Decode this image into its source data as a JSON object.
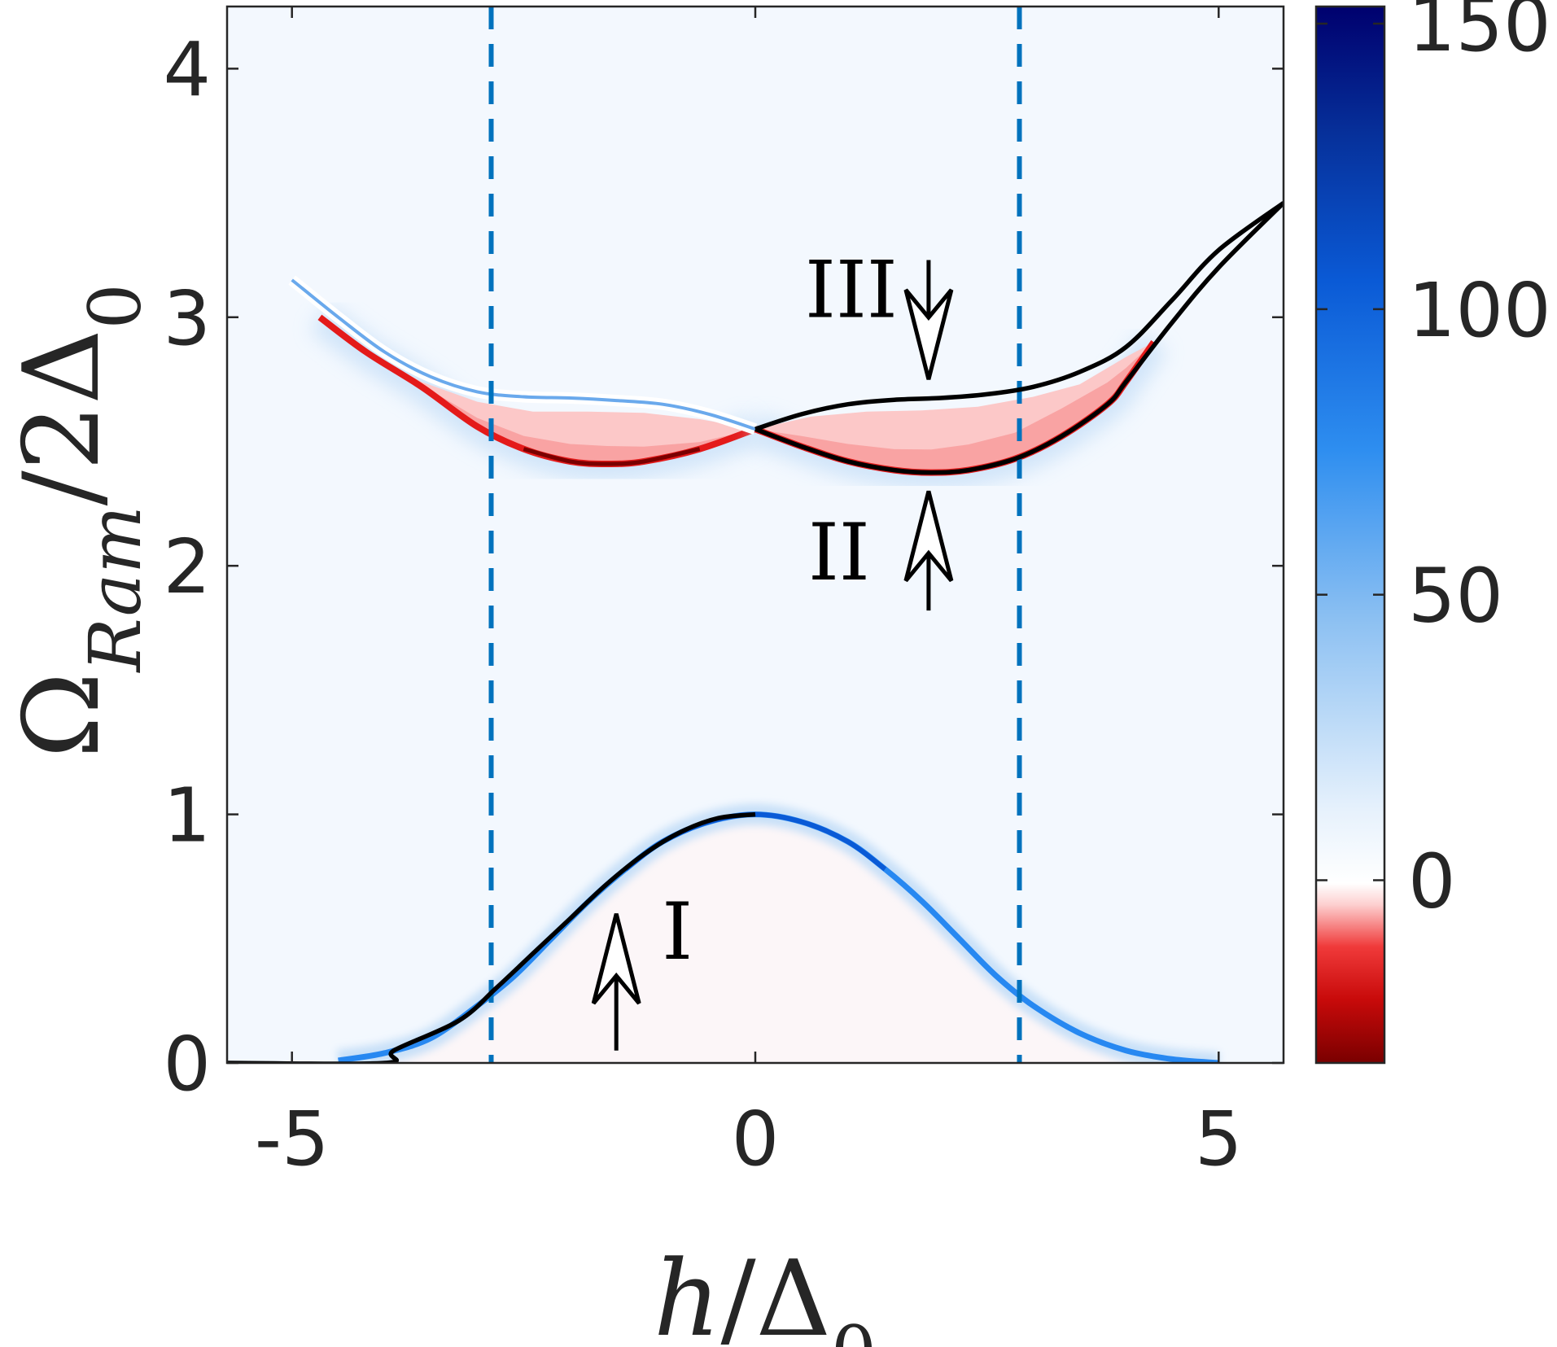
{
  "chart_data": {
    "type": "heatmap",
    "title": "",
    "xlabel": "h/Δ0",
    "ylabel": "Ω_Ram/2Δ0",
    "xlim": [
      -5.7,
      5.7
    ],
    "ylim": [
      0,
      4.25
    ],
    "x_ticks": [
      "-5",
      "0",
      "5"
    ],
    "y_ticks": [
      "0",
      "1",
      "2",
      "3",
      "4"
    ],
    "x_tick_values": [
      -5,
      0,
      5
    ],
    "y_tick_values": [
      0,
      1,
      2,
      3,
      4
    ],
    "colorbar": {
      "ticks": [
        "0",
        "50",
        "100",
        "150"
      ],
      "tick_values": [
        0,
        50,
        100,
        150
      ],
      "range": [
        -32,
        153
      ],
      "colors": {
        "max": "#00006e",
        "mid_blue": "#0a78f0",
        "light": "#c8e0f8",
        "white": "#ffffff",
        "pink": "#fcc8c8",
        "red": "#e41a1a",
        "dark_red": "#7a0000"
      }
    },
    "background_color": "#f3f8fe",
    "dashed_lines": {
      "x": [
        -2.85,
        2.85
      ],
      "color": "#0072bd"
    },
    "series": [
      {
        "kind": "solid-curve",
        "color": "#000000",
        "points": [
          [
            -5.7,
            0
          ],
          [
            -4.0,
            0
          ],
          [
            -3.9,
            0.05
          ],
          [
            -3.2,
            0.17
          ],
          [
            -2.8,
            0.3
          ],
          [
            -2.4,
            0.44
          ],
          [
            -2.0,
            0.58
          ],
          [
            -1.6,
            0.72
          ],
          [
            -1.2,
            0.84
          ],
          [
            -0.8,
            0.93
          ],
          [
            -0.4,
            0.985
          ],
          [
            0,
            1.0
          ]
        ]
      },
      {
        "kind": "solid-curve",
        "color": "#000000",
        "points": [
          [
            0,
            2.55
          ],
          [
            0.5,
            2.61
          ],
          [
            1.0,
            2.65
          ],
          [
            1.5,
            2.668
          ],
          [
            2.0,
            2.675
          ],
          [
            2.5,
            2.69
          ],
          [
            3.0,
            2.72
          ],
          [
            3.5,
            2.78
          ],
          [
            4.0,
            2.88
          ],
          [
            4.5,
            3.07
          ],
          [
            5.0,
            3.27
          ],
          [
            5.7,
            3.46
          ]
        ]
      },
      {
        "kind": "solid-curve",
        "color": "#000000",
        "points": [
          [
            0,
            2.55
          ],
          [
            0.5,
            2.48
          ],
          [
            1.0,
            2.42
          ],
          [
            1.5,
            2.385
          ],
          [
            1.9,
            2.375
          ],
          [
            2.3,
            2.385
          ],
          [
            2.8,
            2.43
          ],
          [
            3.3,
            2.52
          ],
          [
            3.8,
            2.65
          ],
          [
            4.0,
            2.74
          ],
          [
            4.5,
            2.98
          ],
          [
            5.0,
            3.2
          ],
          [
            5.7,
            3.46
          ]
        ]
      },
      {
        "kind": "blue-ridge",
        "color": "#0a5ad6",
        "points": [
          [
            -4.5,
            0.01
          ],
          [
            -4.0,
            0.04
          ],
          [
            -3.5,
            0.1
          ],
          [
            -3.0,
            0.23
          ],
          [
            -2.6,
            0.35
          ],
          [
            -2.2,
            0.5
          ],
          [
            -1.8,
            0.65
          ],
          [
            -1.4,
            0.78
          ],
          [
            -1.0,
            0.89
          ],
          [
            -0.5,
            0.97
          ],
          [
            0,
            1.0
          ],
          [
            0.5,
            0.97
          ],
          [
            1.0,
            0.89
          ],
          [
            1.4,
            0.78
          ],
          [
            1.8,
            0.65
          ],
          [
            2.2,
            0.5
          ],
          [
            2.6,
            0.35
          ],
          [
            3.0,
            0.23
          ],
          [
            3.5,
            0.12
          ],
          [
            4.0,
            0.05
          ],
          [
            4.5,
            0.015
          ],
          [
            5.0,
            0.0
          ]
        ]
      },
      {
        "kind": "blue-ridge-upper-left",
        "color": "#5aa0ea",
        "points": [
          [
            -5.0,
            3.15
          ],
          [
            -4.5,
            3.0
          ],
          [
            -4.0,
            2.86
          ],
          [
            -3.5,
            2.76
          ],
          [
            -3.0,
            2.7
          ],
          [
            -2.5,
            2.68
          ],
          [
            -2.0,
            2.675
          ],
          [
            -1.5,
            2.665
          ],
          [
            -1.0,
            2.65
          ],
          [
            -0.5,
            2.61
          ],
          [
            0,
            2.55
          ]
        ]
      },
      {
        "kind": "red-region-left",
        "upper": [
          [
            -4.7,
            3.0
          ],
          [
            -4.2,
            2.86
          ],
          [
            -3.6,
            2.74
          ],
          [
            -3.0,
            2.66
          ],
          [
            -2.4,
            2.62
          ],
          [
            -1.8,
            2.62
          ],
          [
            -1.2,
            2.615
          ],
          [
            -0.6,
            2.59
          ],
          [
            0,
            2.55
          ]
        ],
        "lower": [
          [
            -4.7,
            3.0
          ],
          [
            -4.2,
            2.86
          ],
          [
            -3.6,
            2.72
          ],
          [
            -3.0,
            2.56
          ],
          [
            -2.5,
            2.47
          ],
          [
            -2.0,
            2.42
          ],
          [
            -1.6,
            2.41
          ],
          [
            -1.2,
            2.42
          ],
          [
            -0.6,
            2.47
          ],
          [
            0,
            2.55
          ]
        ]
      },
      {
        "kind": "red-region-right",
        "upper": [
          [
            0,
            2.55
          ],
          [
            0.6,
            2.6
          ],
          [
            1.2,
            2.62
          ],
          [
            1.8,
            2.625
          ],
          [
            2.4,
            2.64
          ],
          [
            3.0,
            2.68
          ],
          [
            3.5,
            2.73
          ],
          [
            4.0,
            2.84
          ],
          [
            4.3,
            2.9
          ]
        ],
        "lower": [
          [
            0,
            2.55
          ],
          [
            0.5,
            2.48
          ],
          [
            1.0,
            2.42
          ],
          [
            1.5,
            2.385
          ],
          [
            1.9,
            2.375
          ],
          [
            2.3,
            2.385
          ],
          [
            2.8,
            2.43
          ],
          [
            3.3,
            2.52
          ],
          [
            3.8,
            2.65
          ],
          [
            4.0,
            2.74
          ],
          [
            4.3,
            2.9
          ]
        ]
      }
    ],
    "annotations": [
      {
        "text": "I",
        "arrow": "up",
        "arrow_tail": [
          -1.5,
          0.05
        ],
        "arrow_head": [
          -1.5,
          0.6
        ]
      },
      {
        "text": "II",
        "arrow": "up",
        "arrow_tail": [
          1.87,
          1.82
        ],
        "arrow_head": [
          1.87,
          2.3
        ]
      },
      {
        "text": "III",
        "arrow": "down",
        "arrow_tail": [
          1.87,
          3.23
        ],
        "arrow_head": [
          1.87,
          2.75
        ]
      }
    ]
  }
}
